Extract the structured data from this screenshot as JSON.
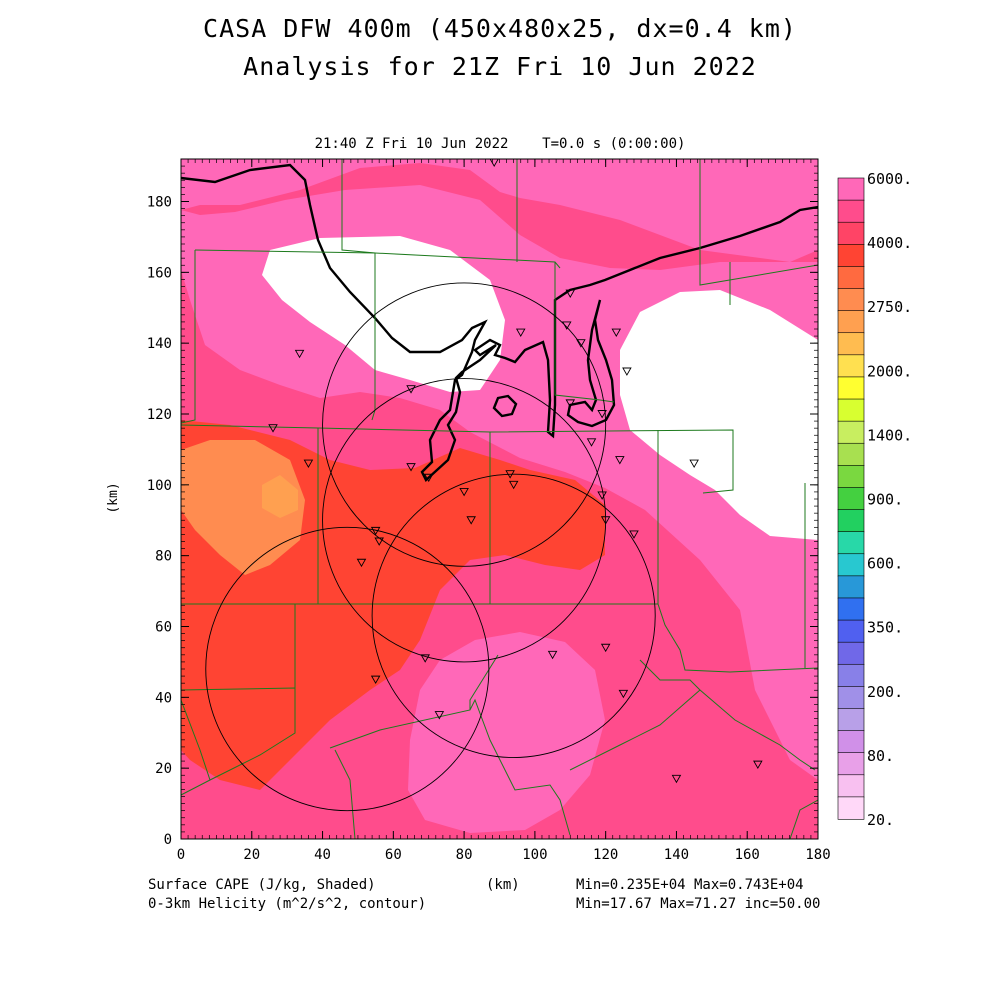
{
  "header": {
    "title_line1": "CASA DFW 400m (450x480x25, dx=0.4 km)",
    "title_line2": "Analysis for 21Z Fri 10 Jun 2022",
    "subtitle": "21:40 Z Fri 10 Jun 2022    T=0.0 s (0:00:00)"
  },
  "axes": {
    "x_label": "(km)",
    "y_label": "(km)",
    "x_ticks": [
      "0",
      "20",
      "40",
      "60",
      "80",
      "100",
      "120",
      "140",
      "160",
      "180"
    ],
    "y_ticks": [
      "0",
      "20",
      "40",
      "60",
      "80",
      "100",
      "120",
      "140",
      "160",
      "180"
    ],
    "x_range": [
      0,
      180
    ],
    "y_range": [
      0,
      192
    ]
  },
  "colorbar": {
    "labels": [
      "6000.",
      "4000.",
      "2750.",
      "2000.",
      "1400.",
      "900.",
      "600.",
      "350.",
      "200.",
      "80.",
      "20."
    ],
    "colors": [
      "#ff68b8",
      "#ff4c8c",
      "#ff4466",
      "#ff4433",
      "#ff6a40",
      "#ff8c50",
      "#ffa050",
      "#ffbc50",
      "#ffe050",
      "#ffff30",
      "#d8ff30",
      "#c8ee60",
      "#a8e050",
      "#7ad840",
      "#44d040",
      "#22d060",
      "#28d8a8",
      "#28c8d0",
      "#2898d8",
      "#3070f0",
      "#5060f0",
      "#7068e8",
      "#8880e8",
      "#a090e8",
      "#b8a0e8",
      "#d090e8",
      "#e8a0e8",
      "#f8c0f0",
      "#ffd8f8"
    ]
  },
  "footer": {
    "left_line1": "Surface CAPE (J/kg, Shaded)",
    "left_line2": "0-3km Helicity (m^2/s^2, contour)",
    "center": "(km)",
    "right_line1": "Min=0.235E+04 Max=0.743E+04",
    "right_line2": "Min=17.67 Max=71.27 inc=50.00"
  },
  "map": {
    "radar_circles": [
      {
        "cx": 80,
        "cy": 117,
        "r": 40
      },
      {
        "cx": 80,
        "cy": 90,
        "r": 40
      },
      {
        "cx": 47,
        "cy": 48,
        "r": 40
      },
      {
        "cx": 94,
        "cy": 63,
        "r": 40
      }
    ],
    "stations": [
      [
        88.5,
        191
      ],
      [
        33.5,
        137
      ],
      [
        110,
        154
      ],
      [
        96,
        143
      ],
      [
        109,
        145
      ],
      [
        113,
        140
      ],
      [
        123,
        143
      ],
      [
        126,
        132
      ],
      [
        65,
        127
      ],
      [
        110,
        123
      ],
      [
        119,
        120
      ],
      [
        116,
        112
      ],
      [
        26,
        116
      ],
      [
        36,
        106
      ],
      [
        65,
        105
      ],
      [
        70,
        102
      ],
      [
        93,
        103
      ],
      [
        124,
        107
      ],
      [
        145,
        106
      ],
      [
        80,
        98
      ],
      [
        94,
        100
      ],
      [
        119,
        97
      ],
      [
        82,
        90
      ],
      [
        120,
        90
      ],
      [
        128,
        86
      ],
      [
        55,
        87
      ],
      [
        56,
        84
      ],
      [
        51,
        78
      ],
      [
        55,
        45
      ],
      [
        69,
        51
      ],
      [
        105,
        52
      ],
      [
        120,
        54
      ],
      [
        73,
        35
      ],
      [
        125,
        41
      ],
      [
        140,
        17
      ],
      [
        163,
        21
      ]
    ]
  }
}
